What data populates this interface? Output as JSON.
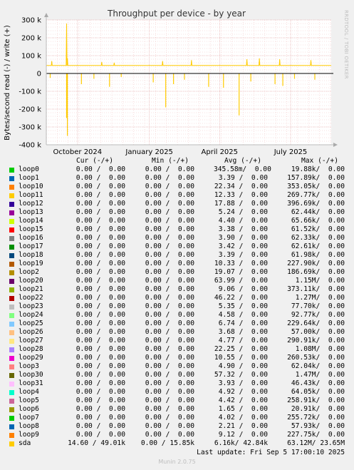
{
  "chart_data": {
    "type": "line",
    "title": "Throughput per device - by year",
    "ylabel": "Bytes/second read (-) / write (+)",
    "side_label": "RRDTOOL / TOBI OETIKER",
    "ylim": [
      -400000,
      300000
    ],
    "yticks": [
      {
        "v": 300000,
        "label": "300 k"
      },
      {
        "v": 200000,
        "label": "200 k"
      },
      {
        "v": 100000,
        "label": "100 k"
      },
      {
        "v": 0,
        "label": "0"
      },
      {
        "v": -100000,
        "label": "-100 k"
      },
      {
        "v": -200000,
        "label": "-200 k"
      },
      {
        "v": -300000,
        "label": "-300 k"
      },
      {
        "v": -400000,
        "label": "-400 k"
      }
    ],
    "xrange": [
      "2024-09-05",
      "2025-09-05"
    ],
    "xticks": [
      {
        "x": "2024-10-15",
        "label": "October 2024"
      },
      {
        "x": "2025-01-15",
        "label": "January 2025"
      },
      {
        "x": "2025-04-15",
        "label": "April 2025"
      },
      {
        "x": "2025-07-15",
        "label": "July 2025"
      }
    ],
    "grid": true,
    "series": [
      {
        "name": "sda",
        "color": "#ffcc00",
        "write_baseline": 45000,
        "write_spikes": [
          {
            "x": "2024-10-01",
            "y": 280000
          },
          {
            "x": "2024-10-02",
            "y": 85000
          },
          {
            "x": "2024-09-12",
            "y": 70000
          },
          {
            "x": "2024-11-15",
            "y": 65000
          },
          {
            "x": "2024-12-01",
            "y": 60000
          },
          {
            "x": "2025-02-01",
            "y": 70000
          },
          {
            "x": "2025-03-10",
            "y": 75000
          },
          {
            "x": "2025-05-20",
            "y": 80000
          },
          {
            "x": "2025-06-05",
            "y": 85000
          },
          {
            "x": "2025-07-01",
            "y": 80000
          },
          {
            "x": "2025-08-10",
            "y": 75000
          }
        ],
        "read_spikes": [
          {
            "x": "2024-10-01",
            "y": -250000
          },
          {
            "x": "2024-10-02",
            "y": -350000
          },
          {
            "x": "2024-09-10",
            "y": -25000
          },
          {
            "x": "2024-10-20",
            "y": -60000
          },
          {
            "x": "2024-11-05",
            "y": -30000
          },
          {
            "x": "2024-11-25",
            "y": -75000
          },
          {
            "x": "2024-12-10",
            "y": -20000
          },
          {
            "x": "2025-01-20",
            "y": -50000
          },
          {
            "x": "2025-02-05",
            "y": -190000
          },
          {
            "x": "2025-02-15",
            "y": -60000
          },
          {
            "x": "2025-03-01",
            "y": -35000
          },
          {
            "x": "2025-04-01",
            "y": -75000
          },
          {
            "x": "2025-04-20",
            "y": -80000
          },
          {
            "x": "2025-05-10",
            "y": -235000
          },
          {
            "x": "2025-05-25",
            "y": -45000
          },
          {
            "x": "2025-06-25",
            "y": -60000
          },
          {
            "x": "2025-07-05",
            "y": -70000
          },
          {
            "x": "2025-07-20",
            "y": -30000
          },
          {
            "x": "2025-08-15",
            "y": -35000
          }
        ]
      }
    ]
  },
  "legend": {
    "headers": {
      "cur": "Cur (-/+)",
      "min": "Min (-/+)",
      "avg": "Avg (-/+)",
      "max": "Max (-/+)"
    },
    "rows": [
      {
        "name": "loop0",
        "color": "#00cc00",
        "cur": "0.00 /  0.00",
        "min": "0.00 /  0.00",
        "avg": "345.58m/  0.00",
        "max": "19.88k/  0.00"
      },
      {
        "name": "loop1",
        "color": "#0066b3",
        "cur": "0.00 /  0.00",
        "min": "0.00 /  0.00",
        "avg": "3.39 /  0.00",
        "max": "157.89k/  0.00"
      },
      {
        "name": "loop10",
        "color": "#ff8000",
        "cur": "0.00 /  0.00",
        "min": "0.00 /  0.00",
        "avg": "22.34 /  0.00",
        "max": "353.05k/  0.00"
      },
      {
        "name": "loop11",
        "color": "#ffcc00",
        "cur": "0.00 /  0.00",
        "min": "0.00 /  0.00",
        "avg": "12.33 /  0.00",
        "max": "269.77k/  0.00"
      },
      {
        "name": "loop12",
        "color": "#330099",
        "cur": "0.00 /  0.00",
        "min": "0.00 /  0.00",
        "avg": "17.88 /  0.00",
        "max": "396.69k/  0.00"
      },
      {
        "name": "loop13",
        "color": "#990099",
        "cur": "0.00 /  0.00",
        "min": "0.00 /  0.00",
        "avg": "5.24 /  0.00",
        "max": "62.44k/  0.00"
      },
      {
        "name": "loop14",
        "color": "#ccff00",
        "cur": "0.00 /  0.00",
        "min": "0.00 /  0.00",
        "avg": "4.40 /  0.00",
        "max": "65.66k/  0.00"
      },
      {
        "name": "loop15",
        "color": "#ff0000",
        "cur": "0.00 /  0.00",
        "min": "0.00 /  0.00",
        "avg": "3.38 /  0.00",
        "max": "61.52k/  0.00"
      },
      {
        "name": "loop16",
        "color": "#808080",
        "cur": "0.00 /  0.00",
        "min": "0.00 /  0.00",
        "avg": "3.90 /  0.00",
        "max": "62.33k/  0.00"
      },
      {
        "name": "loop17",
        "color": "#008f00",
        "cur": "0.00 /  0.00",
        "min": "0.00 /  0.00",
        "avg": "3.42 /  0.00",
        "max": "62.61k/  0.00"
      },
      {
        "name": "loop18",
        "color": "#00487d",
        "cur": "0.00 /  0.00",
        "min": "0.00 /  0.00",
        "avg": "3.39 /  0.00",
        "max": "61.98k/  0.00"
      },
      {
        "name": "loop19",
        "color": "#b35a00",
        "cur": "0.00 /  0.00",
        "min": "0.00 /  0.00",
        "avg": "10.33 /  0.00",
        "max": "227.90k/  0.00"
      },
      {
        "name": "loop2",
        "color": "#b38f00",
        "cur": "0.00 /  0.00",
        "min": "0.00 /  0.00",
        "avg": "19.07 /  0.00",
        "max": "186.69k/  0.00"
      },
      {
        "name": "loop20",
        "color": "#6b006b",
        "cur": "0.00 /  0.00",
        "min": "0.00 /  0.00",
        "avg": "63.99 /  0.00",
        "max": "1.15M/  0.00"
      },
      {
        "name": "loop21",
        "color": "#8fb300",
        "cur": "0.00 /  0.00",
        "min": "0.00 /  0.00",
        "avg": "9.06 /  0.00",
        "max": "373.11k/  0.00"
      },
      {
        "name": "loop22",
        "color": "#b30000",
        "cur": "0.00 /  0.00",
        "min": "0.00 /  0.00",
        "avg": "46.22 /  0.00",
        "max": "1.27M/  0.00"
      },
      {
        "name": "loop23",
        "color": "#bebebe",
        "cur": "0.00 /  0.00",
        "min": "0.00 /  0.00",
        "avg": "5.35 /  0.00",
        "max": "77.70k/  0.00"
      },
      {
        "name": "loop24",
        "color": "#80ff80",
        "cur": "0.00 /  0.00",
        "min": "0.00 /  0.00",
        "avg": "4.58 /  0.00",
        "max": "92.77k/  0.00"
      },
      {
        "name": "loop25",
        "color": "#80c9ff",
        "cur": "0.00 /  0.00",
        "min": "0.00 /  0.00",
        "avg": "6.74 /  0.00",
        "max": "229.64k/  0.00"
      },
      {
        "name": "loop26",
        "color": "#ffc080",
        "cur": "0.00 /  0.00",
        "min": "0.00 /  0.00",
        "avg": "3.68 /  0.00",
        "max": "57.00k/  0.00"
      },
      {
        "name": "loop27",
        "color": "#ffe680",
        "cur": "0.00 /  0.00",
        "min": "0.00 /  0.00",
        "avg": "4.77 /  0.00",
        "max": "290.91k/  0.00"
      },
      {
        "name": "loop28",
        "color": "#aa80ff",
        "cur": "0.00 /  0.00",
        "min": "0.00 /  0.00",
        "avg": "22.25 /  0.00",
        "max": "1.08M/  0.00"
      },
      {
        "name": "loop29",
        "color": "#ee00cc",
        "cur": "0.00 /  0.00",
        "min": "0.00 /  0.00",
        "avg": "10.55 /  0.00",
        "max": "260.53k/  0.00"
      },
      {
        "name": "loop3",
        "color": "#ff8080",
        "cur": "0.00 /  0.00",
        "min": "0.00 /  0.00",
        "avg": "4.90 /  0.00",
        "max": "62.04k/  0.00"
      },
      {
        "name": "loop30",
        "color": "#666600",
        "cur": "0.00 /  0.00",
        "min": "0.00 /  0.00",
        "avg": "57.32 /  0.00",
        "max": "1.47M/  0.00"
      },
      {
        "name": "loop31",
        "color": "#ffbfff",
        "cur": "0.00 /  0.00",
        "min": "0.00 /  0.00",
        "avg": "3.93 /  0.00",
        "max": "46.43k/  0.00"
      },
      {
        "name": "loop4",
        "color": "#00ffcc",
        "cur": "0.00 /  0.00",
        "min": "0.00 /  0.00",
        "avg": "4.92 /  0.00",
        "max": "64.05k/  0.00"
      },
      {
        "name": "loop5",
        "color": "#cc6699",
        "cur": "0.00 /  0.00",
        "min": "0.00 /  0.00",
        "avg": "4.42 /  0.00",
        "max": "258.91k/  0.00"
      },
      {
        "name": "loop6",
        "color": "#999900",
        "cur": "0.00 /  0.00",
        "min": "0.00 /  0.00",
        "avg": "1.65 /  0.00",
        "max": "20.91k/  0.00"
      },
      {
        "name": "loop7",
        "color": "#00cc00",
        "cur": "0.00 /  0.00",
        "min": "0.00 /  0.00",
        "avg": "4.02 /  0.00",
        "max": "255.72k/  0.00"
      },
      {
        "name": "loop8",
        "color": "#0066b3",
        "cur": "0.00 /  0.00",
        "min": "0.00 /  0.00",
        "avg": "2.21 /  0.00",
        "max": "57.93k/  0.00"
      },
      {
        "name": "loop9",
        "color": "#ff8000",
        "cur": "0.00 /  0.00",
        "min": "0.00 /  0.00",
        "avg": "9.12 /  0.00",
        "max": "227.75k/  0.00"
      },
      {
        "name": "sda",
        "color": "#ffcc00",
        "cur": "14.60 / 49.01k",
        "min": "0.00 / 15.85k",
        "avg": "6.16k/ 42.84k",
        "max": "63.12M/ 23.65M"
      }
    ]
  },
  "last_update": "Last update: Fri Sep  5 17:00:10 2025",
  "footer": "Munin 2.0.75"
}
